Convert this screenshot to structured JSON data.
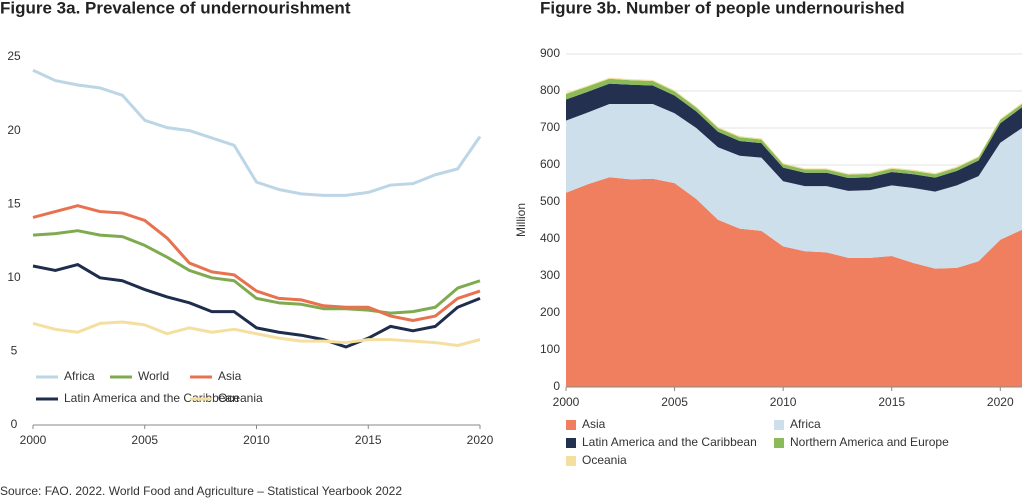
{
  "chart_data": [
    {
      "type": "line",
      "title": "Figure 3a. Prevalence of undernourishment",
      "x": [
        2000,
        2001,
        2002,
        2003,
        2004,
        2005,
        2006,
        2007,
        2008,
        2009,
        2010,
        2011,
        2012,
        2013,
        2014,
        2015,
        2016,
        2017,
        2018,
        2019,
        2020
      ],
      "xlim": [
        2000,
        2020
      ],
      "xticks": [
        2000,
        2005,
        2010,
        2015,
        2020
      ],
      "ylim": [
        0,
        25
      ],
      "yticks": [
        0,
        5,
        10,
        15,
        20,
        25
      ],
      "grid": false,
      "legend": "bottom-left",
      "series": [
        {
          "name": "Africa",
          "color": "#bcd6e6",
          "values": [
            24.1,
            23.4,
            23.1,
            22.9,
            22.4,
            20.7,
            20.2,
            20.0,
            19.5,
            19.0,
            16.5,
            16.0,
            15.7,
            15.6,
            15.6,
            15.8,
            16.3,
            16.4,
            17.0,
            17.4,
            19.6
          ]
        },
        {
          "name": "World",
          "color": "#7faa4f",
          "values": [
            12.9,
            13.0,
            13.2,
            12.9,
            12.8,
            12.2,
            11.4,
            10.5,
            10.0,
            9.8,
            8.6,
            8.3,
            8.2,
            7.9,
            7.9,
            7.8,
            7.6,
            7.7,
            8.0,
            9.3,
            9.8
          ]
        },
        {
          "name": "Asia",
          "color": "#e8714f",
          "values": [
            14.1,
            14.5,
            14.9,
            14.5,
            14.4,
            13.9,
            12.7,
            11.0,
            10.4,
            10.2,
            9.1,
            8.6,
            8.5,
            8.1,
            8.0,
            8.0,
            7.4,
            7.1,
            7.4,
            8.6,
            9.1
          ]
        },
        {
          "name": "Latin America and the Caribbean",
          "color": "#1f2d4d",
          "values": [
            10.8,
            10.5,
            10.9,
            10.0,
            9.8,
            9.2,
            8.7,
            8.3,
            7.7,
            7.7,
            6.6,
            6.3,
            6.1,
            5.8,
            5.3,
            5.9,
            6.7,
            6.4,
            6.7,
            8.0,
            8.6
          ]
        },
        {
          "name": "Oceania",
          "color": "#f5dfa0",
          "values": [
            6.9,
            6.5,
            6.3,
            6.9,
            7.0,
            6.8,
            6.2,
            6.6,
            6.3,
            6.5,
            6.2,
            5.9,
            5.7,
            5.7,
            5.6,
            5.8,
            5.8,
            5.7,
            5.6,
            5.4,
            5.8
          ]
        }
      ]
    },
    {
      "type": "area",
      "title": "Figure 3b. Number of people undernourished",
      "y_label": "Million",
      "stacked": true,
      "x": [
        2000,
        2001,
        2002,
        2003,
        2004,
        2005,
        2006,
        2007,
        2008,
        2009,
        2010,
        2011,
        2012,
        2013,
        2014,
        2015,
        2016,
        2017,
        2018,
        2019,
        2020,
        2021
      ],
      "xlim": [
        2000,
        2021
      ],
      "xticks": [
        2000,
        2005,
        2010,
        2015,
        2020
      ],
      "ylim": [
        0,
        900
      ],
      "yticks": [
        0,
        100,
        200,
        300,
        400,
        500,
        600,
        700,
        800,
        900
      ],
      "grid": true,
      "legend": "bottom",
      "series": [
        {
          "name": "Asia",
          "color": "#ef7f5e",
          "values": [
            525,
            548,
            567,
            561,
            563,
            551,
            508,
            452,
            428,
            422,
            380,
            367,
            364,
            349,
            349,
            354,
            335,
            320,
            322,
            340,
            398,
            425
          ]
        },
        {
          "name": "Africa",
          "color": "#cddfeb",
          "values": [
            195,
            194,
            198,
            204,
            202,
            189,
            192,
            196,
            197,
            198,
            176,
            176,
            179,
            181,
            183,
            191,
            203,
            208,
            223,
            230,
            262,
            275
          ]
        },
        {
          "name": "Latin America and the Caribbean",
          "color": "#24304f",
          "values": [
            57,
            56,
            55,
            52,
            50,
            48,
            45,
            42,
            40,
            39,
            37,
            36,
            36,
            35,
            35,
            36,
            37,
            38,
            39,
            42,
            53,
            56
          ]
        },
        {
          "name": "Northern America and Europe",
          "color": "#8bbb59",
          "values": [
            15,
            14,
            13,
            12,
            12,
            11,
            10,
            10,
            10,
            10,
            9,
            9,
            9,
            9,
            9,
            9,
            9,
            9,
            9,
            9,
            9,
            9
          ]
        },
        {
          "name": "Oceania",
          "color": "#f5dfa0",
          "values": [
            3,
            3,
            3,
            3,
            3,
            3,
            3,
            3,
            3,
            3,
            3,
            3,
            3,
            3,
            3,
            3,
            3,
            3,
            3,
            3,
            3,
            3
          ]
        }
      ]
    }
  ],
  "source": "Source: FAO. 2022. World Food and Agriculture – Statistical Yearbook 2022"
}
